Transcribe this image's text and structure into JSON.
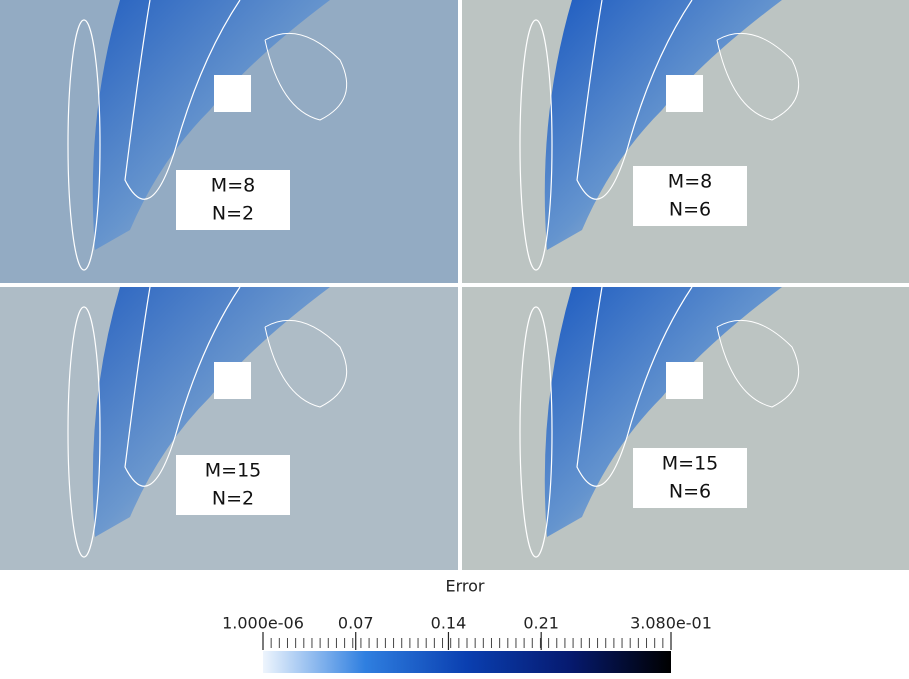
{
  "panels": [
    {
      "label_m": "M=8",
      "label_n": "N=2"
    },
    {
      "label_m": "M=8",
      "label_n": "N=6"
    },
    {
      "label_m": "M=15",
      "label_n": "N=2"
    },
    {
      "label_m": "M=15",
      "label_n": "N=6"
    }
  ],
  "colorbar": {
    "title": "Error",
    "lim": [
      1e-06,
      0.308
    ],
    "ticks": [
      {
        "value": 1e-06,
        "label": "1.000e-06"
      },
      0.07,
      0.14,
      0.21,
      {
        "value": 0.308,
        "label": "3.080e-01"
      }
    ]
  }
}
